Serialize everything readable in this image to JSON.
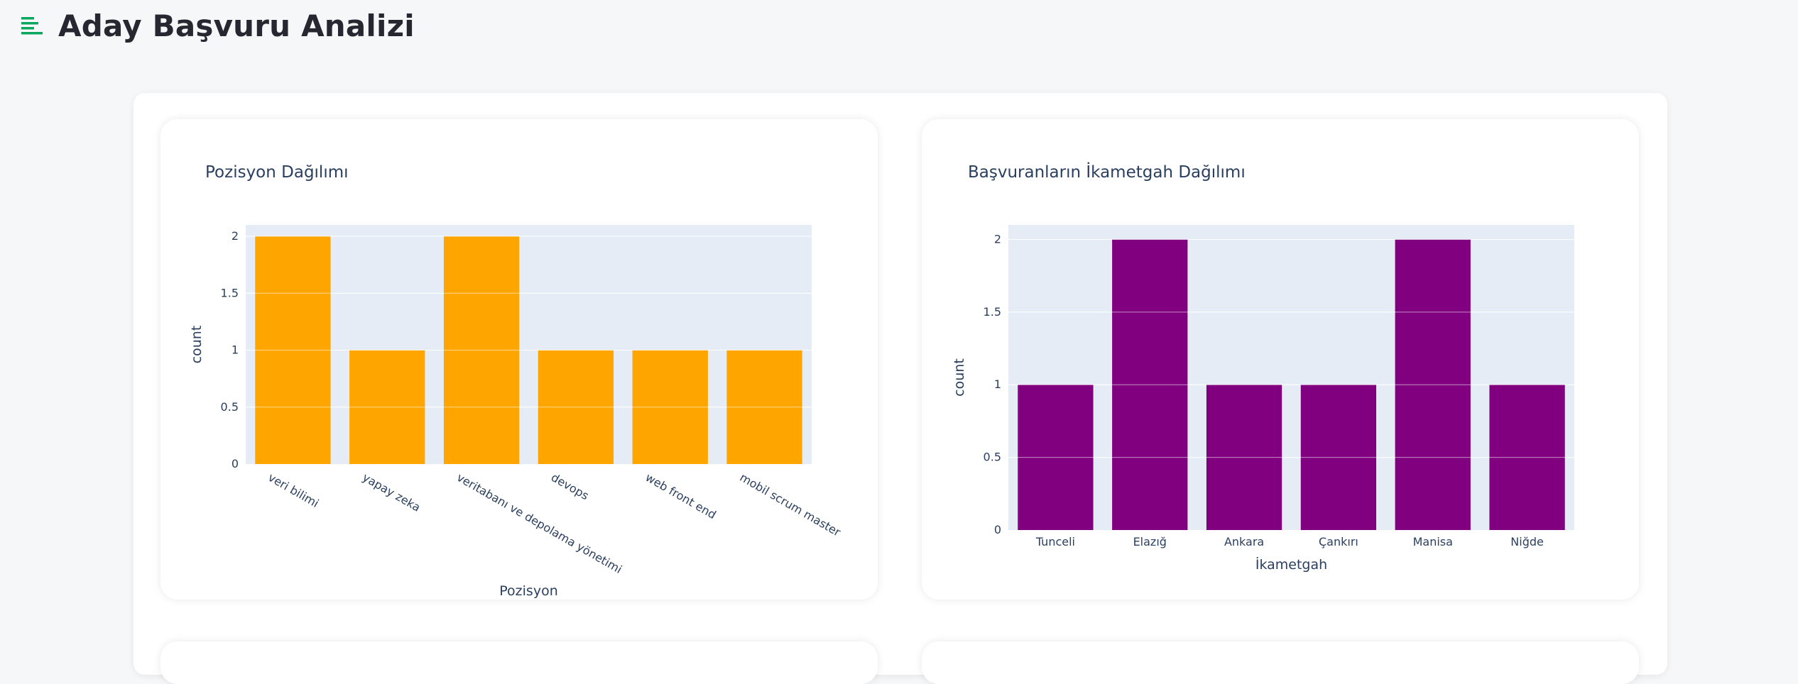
{
  "header": {
    "title": "Aday Başvuru Analizi",
    "menu_icon": "menu-lines-icon",
    "accent_color": "#09a85e"
  },
  "chart_data": [
    {
      "type": "bar",
      "title": "Pozisyon Dağılımı",
      "xlabel": "Pozisyon",
      "ylabel": "count",
      "categories": [
        "veri bilimi",
        "yapay zeka",
        "veritabanı ve depolama yönetimi",
        "devops",
        "web front end",
        "mobil scrum master"
      ],
      "values": [
        2,
        1,
        2,
        1,
        1,
        1
      ],
      "ylim": [
        0,
        2.1
      ],
      "yticks": [
        0,
        0.5,
        1,
        1.5,
        2
      ],
      "ytick_labels": [
        "0",
        "0.5",
        "1",
        "1.5",
        "2"
      ],
      "color": "#ffa500",
      "grid": true
    },
    {
      "type": "bar",
      "title": "Başvuranların İkametgah Dağılımı",
      "xlabel": "İkametgah",
      "ylabel": "count",
      "categories": [
        "Tunceli",
        "Elazığ",
        "Ankara",
        "Çankırı",
        "Manisa",
        "Niğde"
      ],
      "values": [
        1,
        2,
        1,
        1,
        2,
        1
      ],
      "ylim": [
        0,
        2.1
      ],
      "yticks": [
        0,
        0.5,
        1,
        1.5,
        2
      ],
      "ytick_labels": [
        "0",
        "0.5",
        "1",
        "1.5",
        "2"
      ],
      "color": "#800080",
      "grid": true
    }
  ]
}
